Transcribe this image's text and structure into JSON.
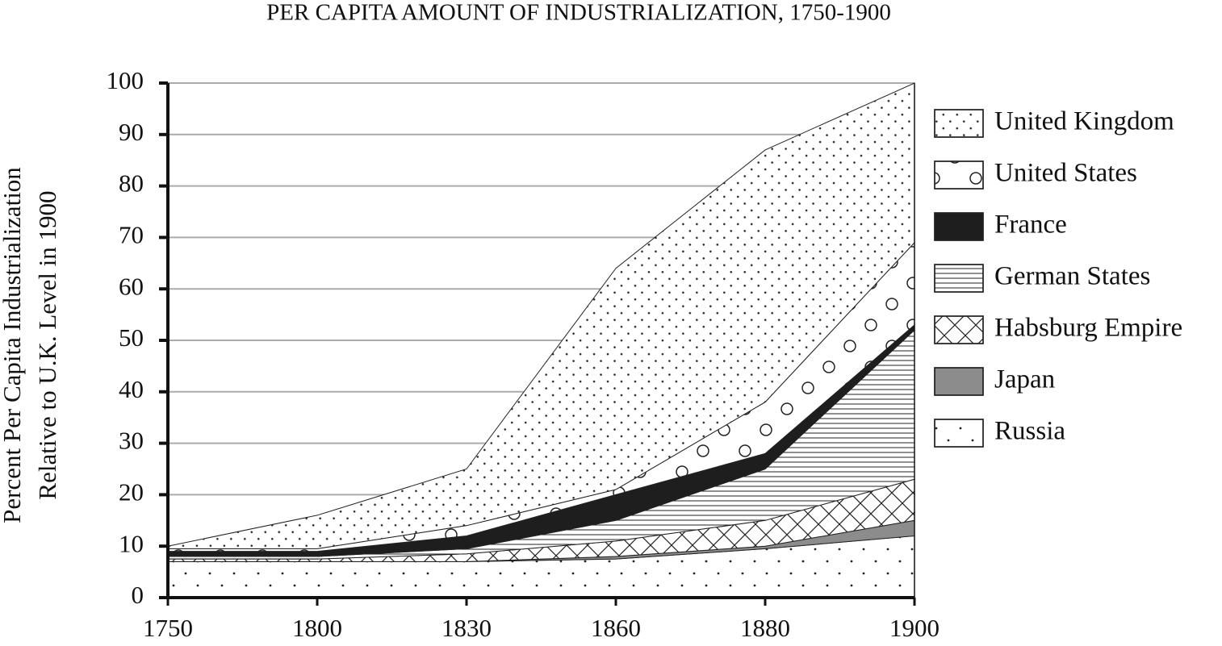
{
  "chart_data": {
    "type": "stacked_area",
    "title": "PER CAPITA AMOUNT  OF INDUSTRIALIZATION,  1750-1900",
    "y_label": [
      "Percent Per Capita Industrialization",
      "Relative to U.K. Level in 1900"
    ],
    "categories": [
      "1750",
      "1800",
      "1830",
      "1860",
      "1880",
      "1900"
    ],
    "ylim": [
      0,
      100
    ],
    "yticks": [
      0,
      10,
      20,
      30,
      40,
      50,
      60,
      70,
      80,
      90,
      100
    ],
    "grid": true,
    "series": [
      {
        "name": "Russia",
        "color": "#ffffff",
        "values": [
          7,
          7,
          7,
          7.5,
          9.5,
          12
        ]
      },
      {
        "name": "Japan",
        "color": "#8c8c8c",
        "values": [
          0,
          0,
          0,
          0.5,
          0.5,
          3
        ]
      },
      {
        "name": "Habsburg Empire",
        "color": "#ffffff",
        "values": [
          0.5,
          0.5,
          1.5,
          3,
          5,
          8
        ]
      },
      {
        "name": "German States",
        "color": "#ffffff",
        "values": [
          0.5,
          0.5,
          1,
          4,
          10,
          29
        ]
      },
      {
        "name": "France",
        "color": "#1e1e1e",
        "values": [
          1,
          1,
          2.5,
          5,
          3,
          1
        ]
      },
      {
        "name": "United States",
        "color": "#ffffff",
        "values": [
          0.5,
          0.5,
          2,
          1,
          10,
          16
        ]
      },
      {
        "name": "United Kingdom",
        "color": "#ffffff",
        "values": [
          0.5,
          6.5,
          11,
          43,
          49,
          31
        ]
      }
    ]
  }
}
